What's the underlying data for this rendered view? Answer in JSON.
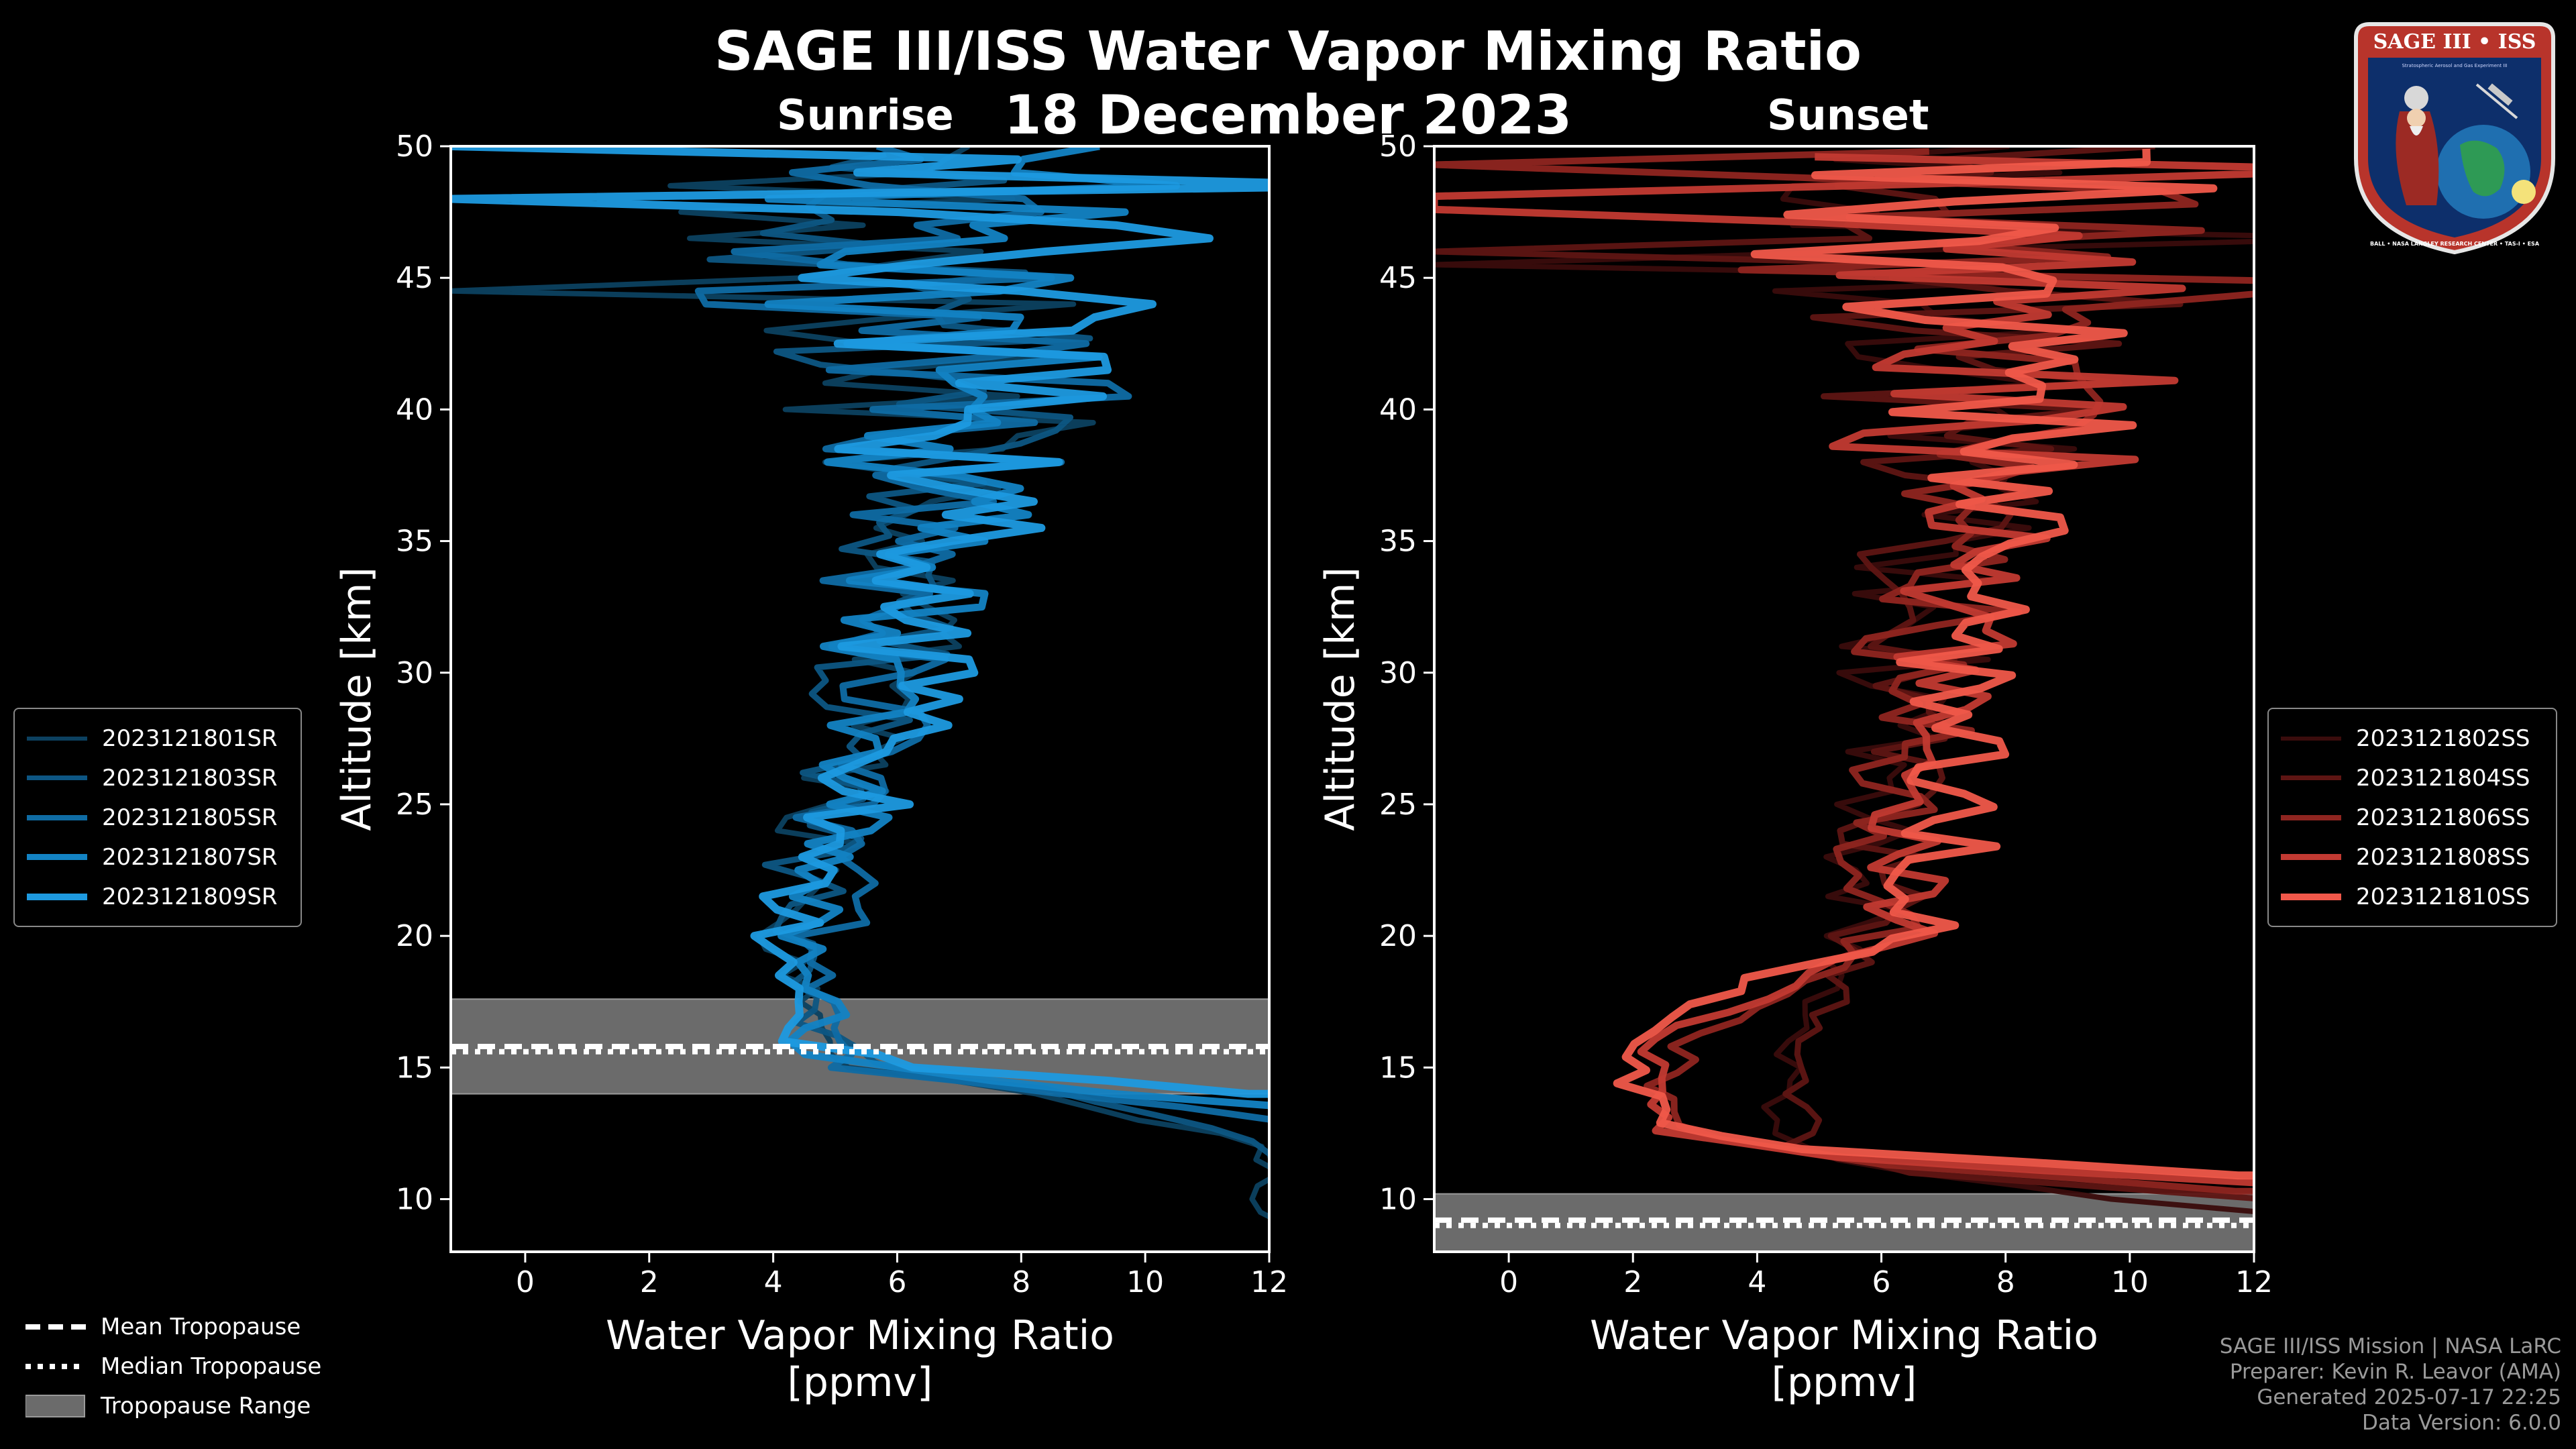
{
  "title": "SAGE III/ISS Water Vapor Mixing Ratio",
  "date": "18 December 2023",
  "colors": {
    "sunrise": "#1e9ae0",
    "sunset": "#f0584a",
    "tropo": "#6b6b6b"
  },
  "legend_left": [
    {
      "label": "2023121801SR",
      "color": "#0c4160"
    },
    {
      "label": "2023121803SR",
      "color": "#0d5683"
    },
    {
      "label": "2023121805SR",
      "color": "#0f6ca4"
    },
    {
      "label": "2023121807SR",
      "color": "#1383c4"
    },
    {
      "label": "2023121809SR",
      "color": "#1e9ae0"
    }
  ],
  "legend_right": [
    {
      "label": "2023121802SS",
      "color": "#3a0c0c"
    },
    {
      "label": "2023121804SS",
      "color": "#5e1513"
    },
    {
      "label": "2023121806SS",
      "color": "#8f2520"
    },
    {
      "label": "2023121808SS",
      "color": "#c23a32"
    },
    {
      "label": "2023121810SS",
      "color": "#f0584a"
    }
  ],
  "legend_tropo": {
    "mean": "Mean Tropopause",
    "median": "Median Tropopause",
    "range": "Tropopause Range"
  },
  "credits": {
    "line1": "SAGE III/ISS Mission | NASA LaRC",
    "line2": "Preparer: Kevin R. Leavor (AMA)",
    "line3": "Generated 2025-07-17 22:25",
    "line4": "Data Version: 6.0.0"
  },
  "logo": {
    "text_top": "SAGE III • ISS",
    "text_small": "Stratospheric Aerosol and Gas Experiment III",
    "text_ring": "BALL • NASA LANGLEY RESEARCH CENTER • TAS-I • ESA"
  },
  "chart_data": [
    {
      "type": "line",
      "panel_label": "Sunrise",
      "xlabel": "Water Vapor Mixing Ratio",
      "xlabel2": "[ppmv]",
      "ylabel": "Altitude [km]",
      "xlim": [
        -1.2,
        12
      ],
      "ylim": [
        8,
        50
      ],
      "xticks": [
        0,
        2,
        4,
        6,
        8,
        10,
        12
      ],
      "yticks": [
        10,
        15,
        20,
        25,
        30,
        35,
        40,
        45,
        50
      ],
      "tropopause": {
        "mean": 15.8,
        "median": 15.6,
        "min": 14.0,
        "max": 17.6
      },
      "series": [
        {
          "name": "2023121801SR",
          "seed": 11,
          "altitude_km": [
            9,
            12,
            14,
            15,
            17,
            20,
            25,
            30,
            35,
            40,
            45,
            50
          ],
          "vmr_ppmv": [
            12,
            12,
            8.0,
            5.2,
            4.7,
            4.1,
            5.1,
            5.8,
            6.4,
            6.8,
            6.0,
            5.5
          ]
        },
        {
          "name": "2023121803SR",
          "seed": 23,
          "altitude_km": [
            9.7,
            12,
            14,
            15,
            17,
            20,
            25,
            30,
            35,
            40,
            45,
            50
          ],
          "vmr_ppmv": [
            12,
            12,
            9.0,
            5.5,
            4.5,
            4.3,
            5.0,
            5.6,
            6.1,
            6.6,
            6.2,
            5.8
          ]
        },
        {
          "name": "2023121805SR",
          "seed": 37,
          "altitude_km": [
            13,
            14,
            15,
            17,
            20,
            25,
            30,
            35,
            40,
            45,
            50
          ],
          "vmr_ppmv": [
            12,
            8.5,
            5.0,
            4.8,
            4.6,
            5.3,
            5.9,
            6.3,
            7.0,
            6.5,
            6.0
          ]
        },
        {
          "name": "2023121807SR",
          "seed": 41,
          "altitude_km": [
            13.5,
            14.5,
            15.5,
            17,
            20,
            25,
            30,
            35,
            40,
            45,
            50
          ],
          "vmr_ppmv": [
            12,
            7.5,
            4.4,
            4.9,
            4.5,
            5.2,
            6.0,
            6.6,
            7.2,
            7.0,
            6.4
          ]
        },
        {
          "name": "2023121809SR",
          "seed": 53,
          "altitude_km": [
            14,
            15,
            16,
            17,
            20,
            25,
            30,
            35,
            40,
            45,
            50
          ],
          "vmr_ppmv": [
            12,
            6.5,
            4.2,
            4.4,
            4.3,
            5.4,
            6.3,
            6.9,
            7.6,
            7.3,
            6.7
          ]
        }
      ]
    },
    {
      "type": "line",
      "panel_label": "Sunset",
      "xlabel": "Water Vapor Mixing Ratio",
      "xlabel2": "[ppmv]",
      "ylabel": "Altitude [km]",
      "xlim": [
        -1.2,
        12
      ],
      "ylim": [
        8,
        50
      ],
      "xticks": [
        0,
        2,
        4,
        6,
        8,
        10,
        12
      ],
      "yticks": [
        10,
        15,
        20,
        25,
        30,
        35,
        40,
        45,
        50
      ],
      "tropopause": {
        "mean": 9.2,
        "median": 9.0,
        "min": 8.0,
        "max": 10.2
      },
      "series": [
        {
          "name": "2023121802SS",
          "seed": 61,
          "altitude_km": [
            9.5,
            10.5,
            11.5,
            13,
            15,
            17,
            20,
            25,
            30,
            35,
            40,
            45,
            50
          ],
          "vmr_ppmv": [
            12,
            8.0,
            5.0,
            4.0,
            4.6,
            4.7,
            5.5,
            5.8,
            6.3,
            7.0,
            7.5,
            7.2,
            6.8
          ]
        },
        {
          "name": "2023121804SS",
          "seed": 73,
          "altitude_km": [
            10,
            11,
            12,
            13,
            15,
            17,
            20,
            25,
            30,
            35,
            40,
            45,
            50
          ],
          "vmr_ppmv": [
            12,
            6.5,
            4.3,
            4.8,
            4.5,
            5.0,
            5.9,
            6.1,
            6.5,
            7.1,
            7.7,
            7.4,
            6.9
          ]
        },
        {
          "name": "2023121806SS",
          "seed": 83,
          "altitude_km": [
            10.3,
            11.3,
            12.5,
            14,
            16,
            18,
            20,
            25,
            30,
            35,
            40,
            45,
            50
          ],
          "vmr_ppmv": [
            12,
            6.0,
            3.0,
            2.5,
            2.8,
            4.8,
            5.8,
            6.3,
            6.8,
            7.3,
            7.9,
            7.6,
            7.0
          ]
        },
        {
          "name": "2023121808SS",
          "seed": 97,
          "altitude_km": [
            10.6,
            11.5,
            12.5,
            14,
            16,
            18,
            20,
            25,
            30,
            35,
            40,
            45,
            50
          ],
          "vmr_ppmv": [
            12,
            5.5,
            2.6,
            2.2,
            2.4,
            4.5,
            6.2,
            6.8,
            7.0,
            7.5,
            8.1,
            7.8,
            7.2
          ]
        },
        {
          "name": "2023121810SS",
          "seed": 101,
          "altitude_km": [
            10.9,
            11.8,
            12.8,
            14.5,
            16.5,
            18.5,
            20,
            25,
            30,
            35,
            40,
            45,
            50
          ],
          "vmr_ppmv": [
            12,
            5.0,
            2.5,
            2.0,
            2.3,
            4.0,
            6.6,
            7.2,
            7.4,
            7.8,
            8.3,
            8.0,
            7.4
          ]
        }
      ]
    }
  ]
}
